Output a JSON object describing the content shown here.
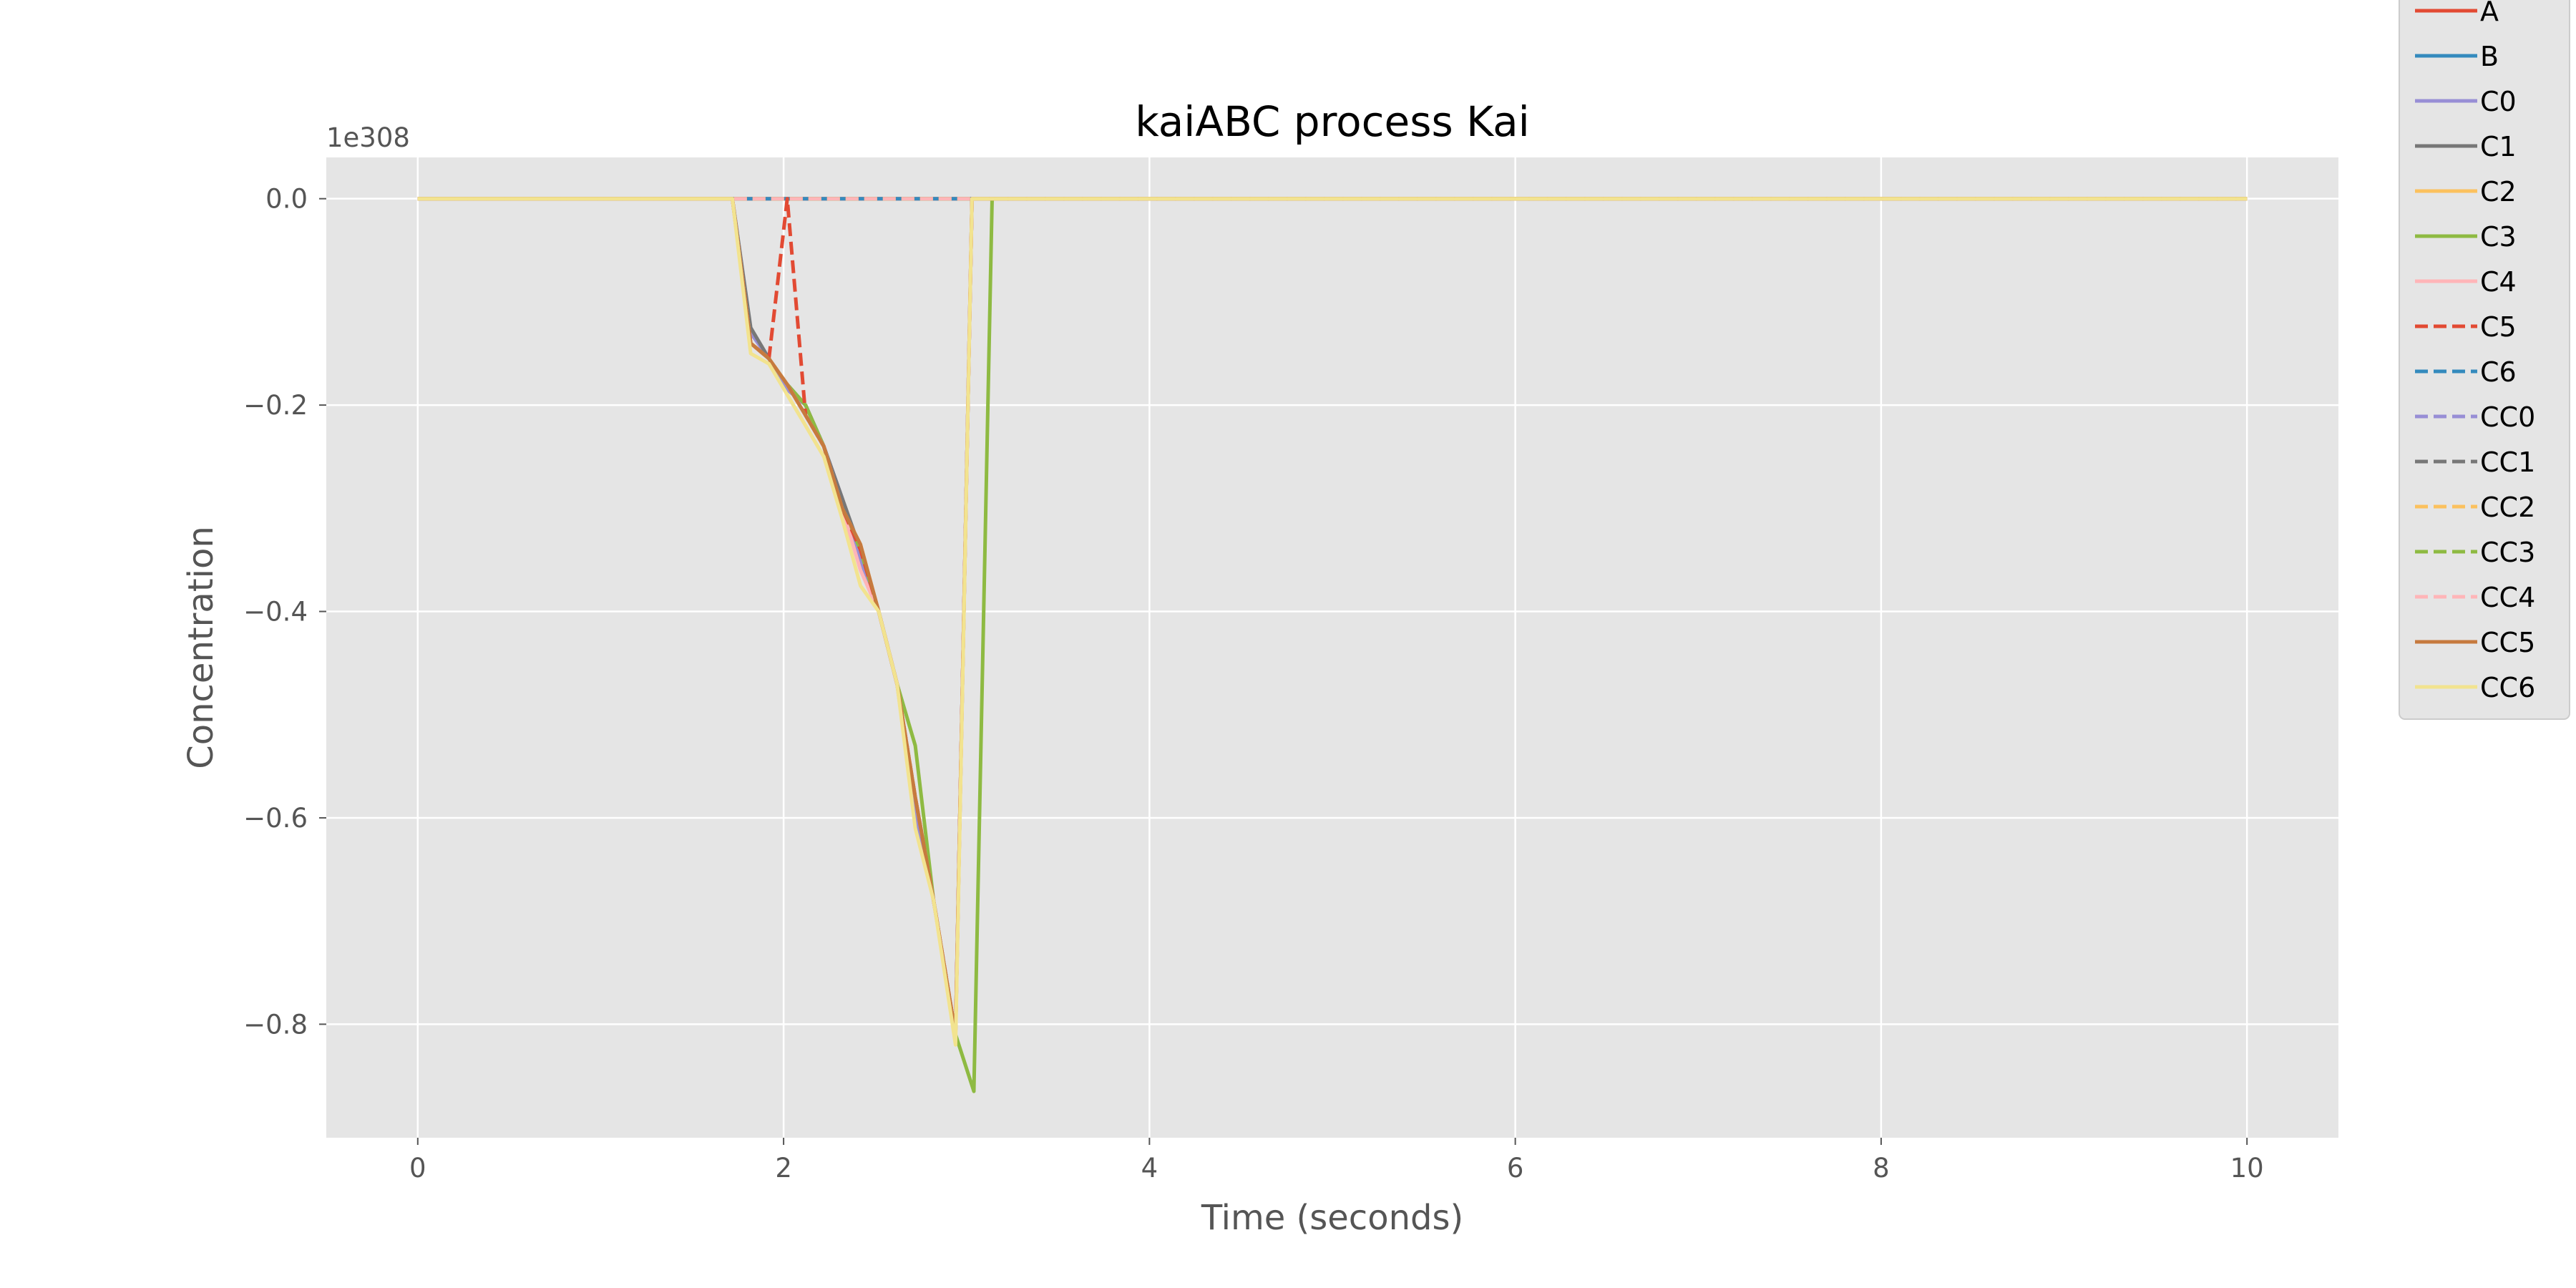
{
  "chart_data": {
    "type": "line",
    "title": "kaiABC process Kai",
    "xlabel": "Time (seconds)",
    "ylabel": "Concentration",
    "y_offset_label": "1e308",
    "xlim": [
      -0.5,
      10.5
    ],
    "ylim": [
      -0.91,
      0.04
    ],
    "x_ticks": [
      0,
      2,
      4,
      6,
      8,
      10
    ],
    "x_tick_labels": [
      "0",
      "2",
      "4",
      "6",
      "8",
      "10"
    ],
    "y_ticks": [
      0.0,
      -0.2,
      -0.4,
      -0.6,
      -0.8
    ],
    "y_tick_labels": [
      "0.0",
      "−0.2",
      "−0.4",
      "−0.6",
      "−0.8"
    ],
    "grid": true,
    "style": "ggplot",
    "legend_position": "outside-right",
    "series": [
      {
        "name": "A",
        "color": "#E24A33",
        "dash": "solid",
        "points": [
          [
            0,
            0
          ],
          [
            1.72,
            0
          ],
          [
            10,
            0
          ]
        ]
      },
      {
        "name": "B",
        "color": "#348ABD",
        "dash": "solid",
        "points": [
          [
            0,
            0
          ],
          [
            1.72,
            0
          ],
          [
            10,
            0
          ]
        ]
      },
      {
        "name": "C0",
        "color": "#988ED5",
        "dash": "solid",
        "points": [
          [
            0,
            0
          ],
          [
            1.72,
            0
          ],
          [
            1.82,
            -0.13
          ],
          [
            1.92,
            -0.155
          ],
          [
            2.02,
            -0.185
          ],
          [
            2.12,
            -0.2
          ],
          [
            2.22,
            -0.24
          ],
          [
            2.32,
            -0.29
          ],
          [
            2.42,
            -0.35
          ],
          [
            2.52,
            -0.4
          ],
          [
            2.62,
            -0.47
          ],
          [
            2.72,
            -0.6
          ],
          [
            2.82,
            -0.68
          ],
          [
            2.94,
            -0.81
          ],
          [
            3.03,
            0
          ],
          [
            10,
            0
          ]
        ]
      },
      {
        "name": "C1",
        "color": "#777777",
        "dash": "solid",
        "points": [
          [
            0,
            0
          ],
          [
            1.72,
            0
          ],
          [
            1.82,
            -0.125
          ],
          [
            1.92,
            -0.155
          ],
          [
            2.02,
            -0.18
          ],
          [
            2.12,
            -0.2
          ],
          [
            2.22,
            -0.24
          ],
          [
            2.32,
            -0.29
          ],
          [
            2.42,
            -0.34
          ],
          [
            2.52,
            -0.4
          ],
          [
            2.62,
            -0.47
          ],
          [
            2.72,
            -0.58
          ],
          [
            2.82,
            -0.68
          ],
          [
            2.94,
            -0.81
          ],
          [
            3.03,
            0
          ],
          [
            10,
            0
          ]
        ]
      },
      {
        "name": "C2",
        "color": "#FBC15E",
        "dash": "solid",
        "points": [
          [
            0,
            0
          ],
          [
            1.72,
            0
          ],
          [
            1.82,
            -0.14
          ],
          [
            1.92,
            -0.155
          ],
          [
            2.02,
            -0.18
          ],
          [
            2.12,
            -0.21
          ],
          [
            2.22,
            -0.24
          ],
          [
            2.32,
            -0.3
          ],
          [
            2.42,
            -0.335
          ],
          [
            2.52,
            -0.4
          ],
          [
            2.62,
            -0.47
          ],
          [
            2.72,
            -0.58
          ],
          [
            2.82,
            -0.68
          ],
          [
            2.94,
            -0.81
          ],
          [
            3.03,
            0
          ],
          [
            10,
            0
          ]
        ]
      },
      {
        "name": "C3",
        "color": "#8EBA42",
        "dash": "solid",
        "points": [
          [
            0,
            0
          ],
          [
            1.72,
            0
          ],
          [
            1.82,
            -0.14
          ],
          [
            1.92,
            -0.155
          ],
          [
            2.02,
            -0.18
          ],
          [
            2.12,
            -0.2
          ],
          [
            2.22,
            -0.24
          ],
          [
            2.32,
            -0.3
          ],
          [
            2.42,
            -0.34
          ],
          [
            2.52,
            -0.4
          ],
          [
            2.62,
            -0.47
          ],
          [
            2.72,
            -0.53
          ],
          [
            2.82,
            -0.68
          ],
          [
            2.94,
            -0.81
          ],
          [
            3.04,
            -0.865
          ],
          [
            3.14,
            0
          ],
          [
            10,
            0
          ]
        ]
      },
      {
        "name": "C4",
        "color": "#FFB5B8",
        "dash": "solid",
        "points": [
          [
            0,
            0
          ],
          [
            1.72,
            0
          ],
          [
            1.82,
            -0.14
          ],
          [
            1.92,
            -0.155
          ],
          [
            2.02,
            -0.18
          ],
          [
            2.12,
            -0.21
          ],
          [
            2.22,
            -0.24
          ],
          [
            2.32,
            -0.3
          ],
          [
            2.42,
            -0.36
          ],
          [
            2.52,
            -0.4
          ],
          [
            2.62,
            -0.47
          ],
          [
            2.72,
            -0.58
          ],
          [
            2.82,
            -0.68
          ],
          [
            2.94,
            -0.81
          ],
          [
            3.03,
            0
          ],
          [
            10,
            0
          ]
        ]
      },
      {
        "name": "C5",
        "color": "#E24A33",
        "dash": "dashed",
        "points": [
          [
            0,
            0
          ],
          [
            1.72,
            0
          ],
          [
            1.82,
            -0.14
          ],
          [
            1.92,
            -0.155
          ],
          [
            2.02,
            0
          ],
          [
            2.12,
            -0.21
          ],
          [
            2.22,
            -0.24
          ],
          [
            2.32,
            -0.3
          ],
          [
            2.42,
            -0.34
          ],
          [
            2.52,
            -0.4
          ],
          [
            2.62,
            -0.47
          ],
          [
            2.72,
            -0.58
          ],
          [
            2.82,
            -0.68
          ],
          [
            2.94,
            -0.81
          ],
          [
            3.03,
            0
          ],
          [
            10,
            0
          ]
        ]
      },
      {
        "name": "C6",
        "color": "#348ABD",
        "dash": "dashed",
        "points": [
          [
            0,
            0
          ],
          [
            1.72,
            0
          ],
          [
            10,
            0
          ]
        ]
      },
      {
        "name": "CC0",
        "color": "#988ED5",
        "dash": "dashed",
        "points": [
          [
            0,
            0
          ],
          [
            1.72,
            0
          ],
          [
            10,
            0
          ]
        ]
      },
      {
        "name": "CC1",
        "color": "#777777",
        "dash": "dashed",
        "points": [
          [
            0,
            0
          ],
          [
            1.72,
            0
          ],
          [
            10,
            0
          ]
        ]
      },
      {
        "name": "CC2",
        "color": "#FBC15E",
        "dash": "dashed",
        "points": [
          [
            0,
            0
          ],
          [
            1.72,
            0
          ],
          [
            10,
            0
          ]
        ]
      },
      {
        "name": "CC3",
        "color": "#8EBA42",
        "dash": "dashed",
        "points": [
          [
            0,
            0
          ],
          [
            1.72,
            0
          ],
          [
            10,
            0
          ]
        ]
      },
      {
        "name": "CC4",
        "color": "#FFB5B8",
        "dash": "dashed",
        "points": [
          [
            0,
            0
          ],
          [
            1.72,
            0
          ],
          [
            10,
            0
          ]
        ]
      },
      {
        "name": "CC5",
        "color": "#C67A3E",
        "dash": "solid",
        "points": [
          [
            0,
            0
          ],
          [
            1.72,
            0
          ],
          [
            1.82,
            -0.14
          ],
          [
            1.92,
            -0.155
          ],
          [
            2.02,
            -0.18
          ],
          [
            2.12,
            -0.21
          ],
          [
            2.22,
            -0.24
          ],
          [
            2.32,
            -0.3
          ],
          [
            2.42,
            -0.335
          ],
          [
            2.52,
            -0.4
          ],
          [
            2.62,
            -0.47
          ],
          [
            2.72,
            -0.58
          ],
          [
            2.82,
            -0.68
          ],
          [
            2.94,
            -0.81
          ],
          [
            3.03,
            0
          ],
          [
            10,
            0
          ]
        ]
      },
      {
        "name": "CC6",
        "color": "#F2E38F",
        "dash": "solid",
        "points": [
          [
            0,
            0
          ],
          [
            1.72,
            0
          ],
          [
            1.82,
            -0.15
          ],
          [
            1.92,
            -0.16
          ],
          [
            2.02,
            -0.19
          ],
          [
            2.12,
            -0.22
          ],
          [
            2.22,
            -0.25
          ],
          [
            2.32,
            -0.31
          ],
          [
            2.42,
            -0.375
          ],
          [
            2.52,
            -0.4
          ],
          [
            2.62,
            -0.47
          ],
          [
            2.72,
            -0.61
          ],
          [
            2.82,
            -0.68
          ],
          [
            2.94,
            -0.82
          ],
          [
            3.03,
            0
          ],
          [
            10,
            0
          ]
        ]
      }
    ]
  }
}
